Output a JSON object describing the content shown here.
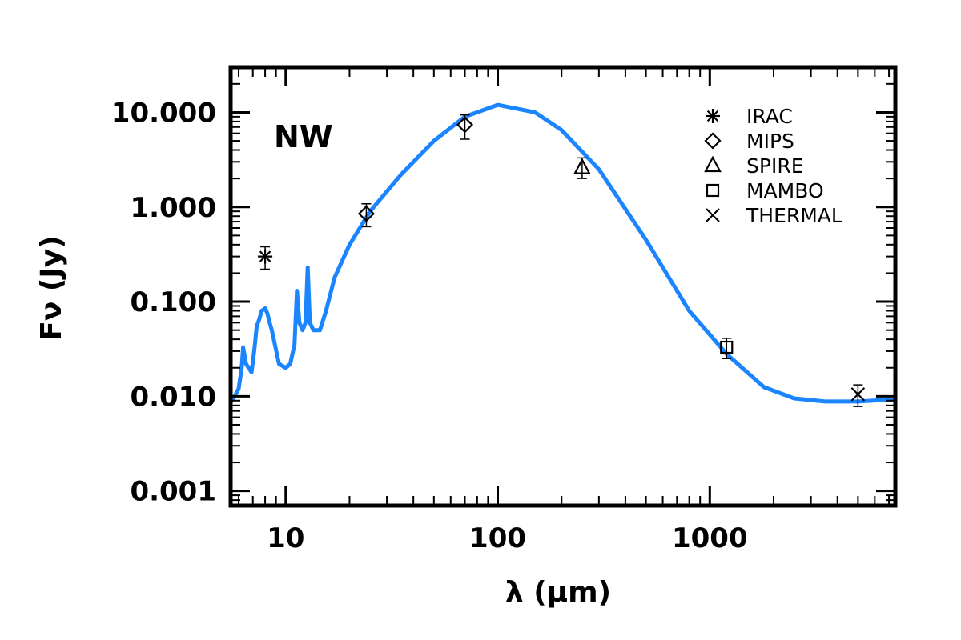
{
  "chart_data": {
    "type": "line",
    "xscale": "log",
    "yscale": "log",
    "xlim": [
      5.5,
      7500
    ],
    "ylim": [
      0.0007,
      30
    ],
    "xlabel": "λ (μm)",
    "ylabel": "Fν (Jy)",
    "panel_label": "NW",
    "x_ticks": [
      {
        "value": 10,
        "label": "10"
      },
      {
        "value": 100,
        "label": "100"
      },
      {
        "value": 1000,
        "label": "1000"
      }
    ],
    "y_ticks": [
      {
        "value": 0.001,
        "label": "0.001"
      },
      {
        "value": 0.01,
        "label": "0.010"
      },
      {
        "value": 0.1,
        "label": "0.100"
      },
      {
        "value": 1,
        "label": "1.000"
      },
      {
        "value": 10,
        "label": "10.000"
      }
    ],
    "model": {
      "color": "#1a85ff",
      "points": [
        [
          5.6,
          0.009
        ],
        [
          6.0,
          0.012
        ],
        [
          6.2,
          0.02
        ],
        [
          6.3,
          0.033
        ],
        [
          6.5,
          0.022
        ],
        [
          6.9,
          0.018
        ],
        [
          7.1,
          0.03
        ],
        [
          7.3,
          0.055
        ],
        [
          7.5,
          0.065
        ],
        [
          7.7,
          0.08
        ],
        [
          8.0,
          0.085
        ],
        [
          8.2,
          0.075
        ],
        [
          8.4,
          0.06
        ],
        [
          8.6,
          0.05
        ],
        [
          8.9,
          0.035
        ],
        [
          9.3,
          0.022
        ],
        [
          10.0,
          0.02
        ],
        [
          10.5,
          0.022
        ],
        [
          11.0,
          0.035
        ],
        [
          11.3,
          0.13
        ],
        [
          11.6,
          0.06
        ],
        [
          12.0,
          0.05
        ],
        [
          12.4,
          0.06
        ],
        [
          12.7,
          0.23
        ],
        [
          13.0,
          0.06
        ],
        [
          13.5,
          0.05
        ],
        [
          14.5,
          0.05
        ],
        [
          15.5,
          0.08
        ],
        [
          17.0,
          0.18
        ],
        [
          20.0,
          0.4
        ],
        [
          25.0,
          0.9
        ],
        [
          35.0,
          2.2
        ],
        [
          50.0,
          5.0
        ],
        [
          70.0,
          9.0
        ],
        [
          100.0,
          12.0
        ],
        [
          150.0,
          10.0
        ],
        [
          200.0,
          6.5
        ],
        [
          300.0,
          2.5
        ],
        [
          500.0,
          0.45
        ],
        [
          800.0,
          0.08
        ],
        [
          1200.0,
          0.028
        ],
        [
          1800.0,
          0.0125
        ],
        [
          2500.0,
          0.0095
        ],
        [
          3500.0,
          0.0088
        ],
        [
          5000.0,
          0.0088
        ],
        [
          7500.0,
          0.0093
        ]
      ]
    },
    "series": [
      {
        "name": "IRAC",
        "symbol": "asterisk",
        "points": [
          {
            "x": 8.0,
            "y": 0.3,
            "ylow": 0.22,
            "yhigh": 0.38
          }
        ]
      },
      {
        "name": "MIPS",
        "symbol": "diamond",
        "points": [
          {
            "x": 24.0,
            "y": 0.85,
            "ylow": 0.62,
            "yhigh": 1.08
          },
          {
            "x": 70.0,
            "y": 7.4,
            "ylow": 5.2,
            "yhigh": 9.4
          }
        ]
      },
      {
        "name": "SPIRE",
        "symbol": "triangle",
        "points": [
          {
            "x": 250.0,
            "y": 2.6,
            "ylow": 2.0,
            "yhigh": 3.3
          }
        ]
      },
      {
        "name": "MAMBO",
        "symbol": "square",
        "points": [
          {
            "x": 1200.0,
            "y": 0.033,
            "ylow": 0.025,
            "yhigh": 0.041
          }
        ]
      },
      {
        "name": "THERMAL",
        "symbol": "x",
        "points": [
          {
            "x": 5000.0,
            "y": 0.0105,
            "ylow": 0.0078,
            "yhigh": 0.0132
          }
        ]
      }
    ],
    "legend_position": "top-right"
  }
}
